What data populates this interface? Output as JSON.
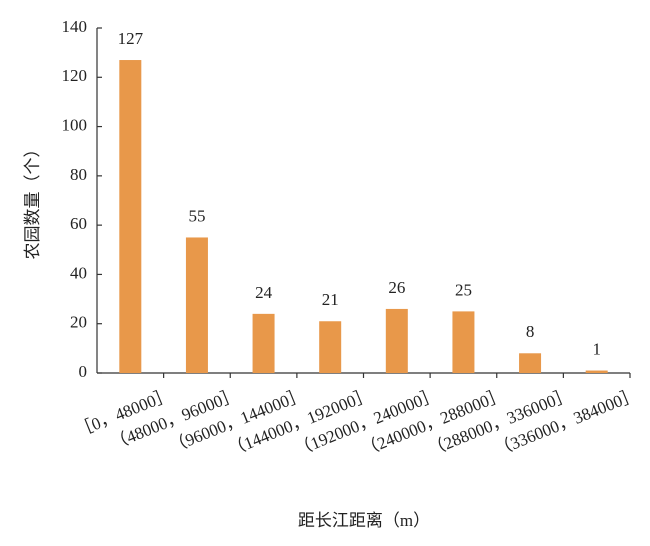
{
  "chart_data": {
    "type": "bar",
    "y_label": "农园数量（个）",
    "x_label": "距长江距离（m）",
    "categories": [
      "［0，48000］",
      "（48000，96000］",
      "（96000，144000］",
      "（144000，192000］",
      "（192000，240000］",
      "（240000，288000］",
      "（288000，336000］",
      "（336000，384000］"
    ],
    "values": [
      127,
      55,
      24,
      21,
      26,
      25,
      8,
      1
    ],
    "color": "#e8984a",
    "ylim": [
      0,
      140
    ],
    "yticks": [
      0,
      20,
      40,
      60,
      80,
      100,
      120,
      140
    ],
    "grid": false
  }
}
